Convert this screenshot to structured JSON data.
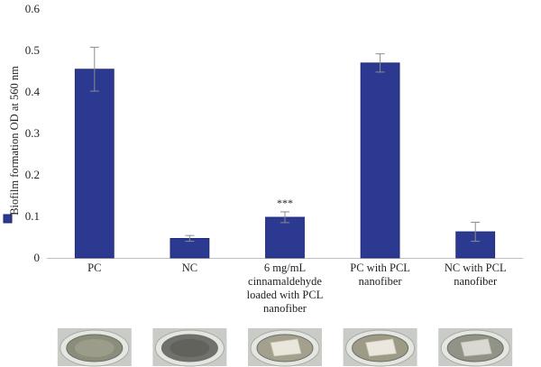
{
  "chart_data": {
    "type": "bar",
    "categories": [
      [
        "PC"
      ],
      [
        "NC"
      ],
      [
        "6 mg/mL",
        "cinnamaldehyde",
        "loaded with PCL",
        "nanofiber"
      ],
      [
        "PC with PCL",
        "nanofiber"
      ],
      [
        "NC with PCL",
        "nanofiber"
      ]
    ],
    "values": [
      0.455,
      0.047,
      0.098,
      0.47,
      0.063
    ],
    "error": [
      0.053,
      0.007,
      0.013,
      0.022,
      0.023
    ],
    "annotations": [
      "",
      "",
      "***",
      "",
      ""
    ],
    "ylabel": "Biofilm formation OD at 560 nm",
    "ylim": [
      0,
      0.6
    ],
    "yticks": [
      0,
      0.1,
      0.2,
      0.3,
      0.4,
      0.5,
      0.6
    ],
    "ytick_labels": [
      "0",
      "0.1",
      "0.2",
      "0.3",
      "0.4",
      "0.5",
      "0.6"
    ],
    "grid": false,
    "bar_color": "#2b3990",
    "bar_edge": "#1c2670",
    "photo_wells": [
      {
        "icon": "well-photo-dark",
        "well": "#8a8d7a",
        "center": "#9fa18f"
      },
      {
        "icon": "well-photo-dark",
        "well": "#6f716a",
        "center": "#5d5f58"
      },
      {
        "icon": "well-photo-film",
        "well": "#a3a08e",
        "center": "#e9e6dc"
      },
      {
        "icon": "well-photo-film",
        "well": "#9d9a86",
        "center": "#ebe7dd"
      },
      {
        "icon": "well-photo-film",
        "well": "#909386",
        "center": "#d9d8d1"
      }
    ]
  }
}
